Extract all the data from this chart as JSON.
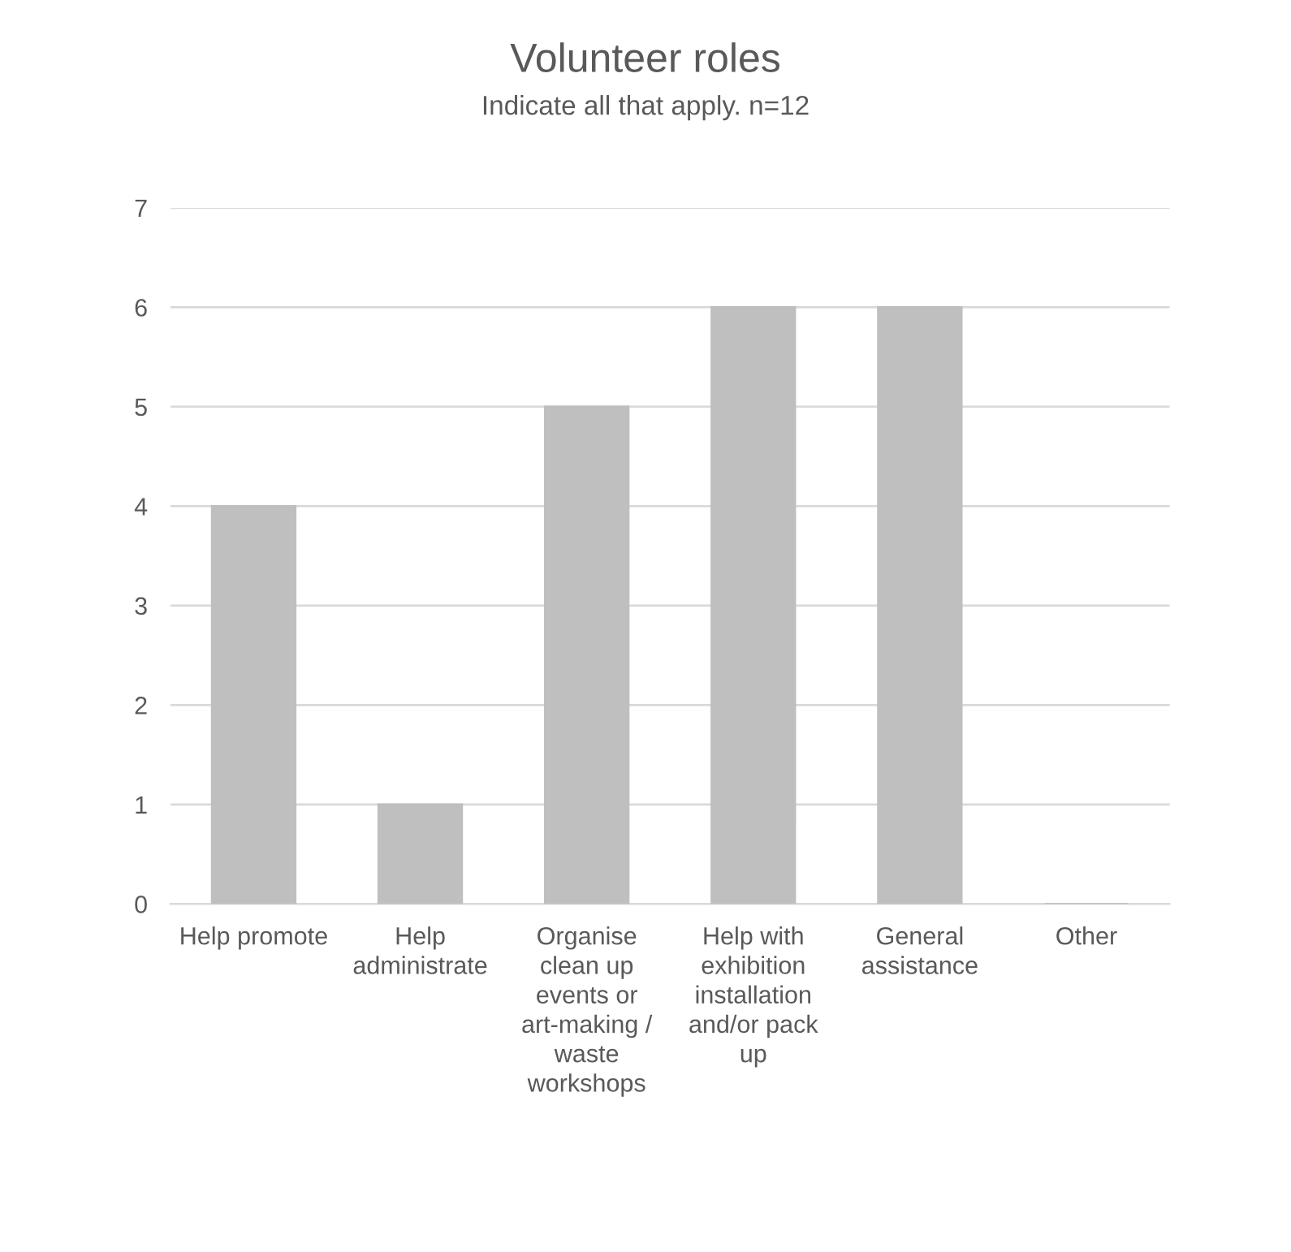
{
  "chart_data": {
    "type": "bar",
    "title": "Volunteer roles",
    "subtitle": "Indicate all that apply. n=12",
    "categories": [
      "Help promote",
      "Help administrate",
      "Organise clean up events or art-making / waste workshops",
      "Help with exhibition installation and/or pack up",
      "General assistance",
      "Other"
    ],
    "values": [
      4,
      1,
      5,
      6,
      6,
      0
    ],
    "color": "#bfbfbf",
    "ylim": [
      0,
      7
    ],
    "yticks": [
      0,
      1,
      2,
      3,
      4,
      5,
      6,
      7
    ],
    "grid": "y",
    "legend": false
  }
}
